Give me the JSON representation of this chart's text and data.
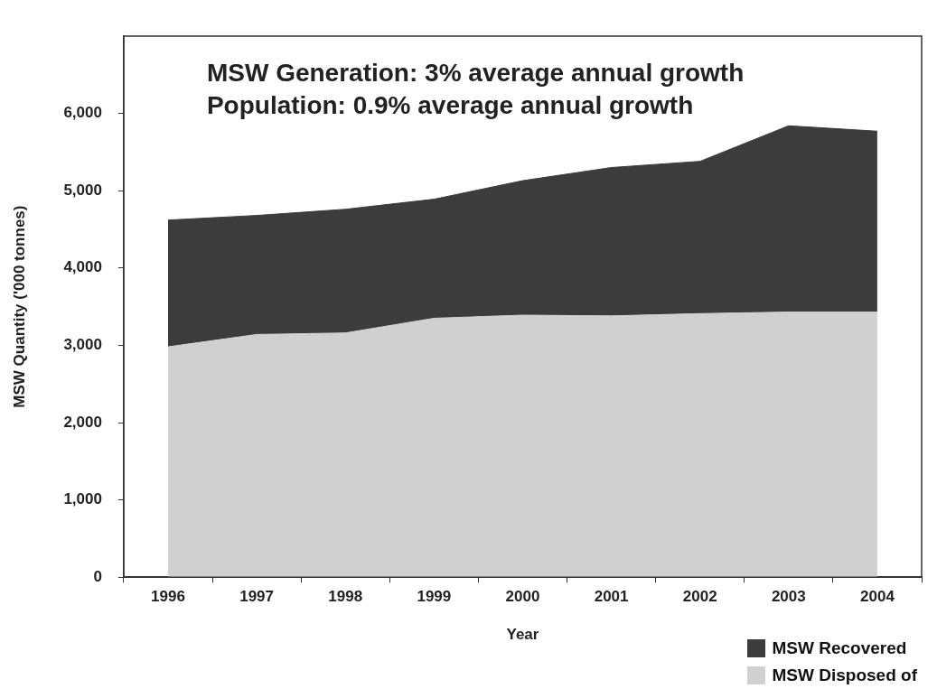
{
  "chart_data": {
    "type": "area",
    "stacked": true,
    "xlabel": "Year",
    "ylabel": "MSW Quantity ('000 tonnes)",
    "categories": [
      "1996",
      "1997",
      "1998",
      "1999",
      "2000",
      "2001",
      "2002",
      "2003",
      "2004"
    ],
    "series": [
      {
        "name": "MSW Disposed of",
        "color": "#d0d0d0",
        "values": [
          2980,
          3140,
          3160,
          3350,
          3390,
          3380,
          3410,
          3430,
          3430
        ]
      },
      {
        "name": "MSW Recovered",
        "color": "#3c3c3c",
        "values": [
          1640,
          1540,
          1600,
          1540,
          1740,
          1920,
          1970,
          2410,
          2340
        ]
      }
    ],
    "ylim": [
      0,
      7000
    ],
    "yticks": [
      0,
      {
        "value": 1000,
        "label": "1,000"
      },
      {
        "value": 2000,
        "label": "2,000"
      },
      {
        "value": 3000,
        "label": "3,000"
      },
      {
        "value": 4000,
        "label": "4,000"
      },
      {
        "value": 5000,
        "label": "5,000"
      },
      {
        "value": 6000,
        "label": "6,000"
      }
    ],
    "grid": false,
    "legend": "bottom right",
    "annotations": [
      "MSW Generation: 3% average annual growth",
      "Population: 0.9% average annual growth"
    ]
  }
}
